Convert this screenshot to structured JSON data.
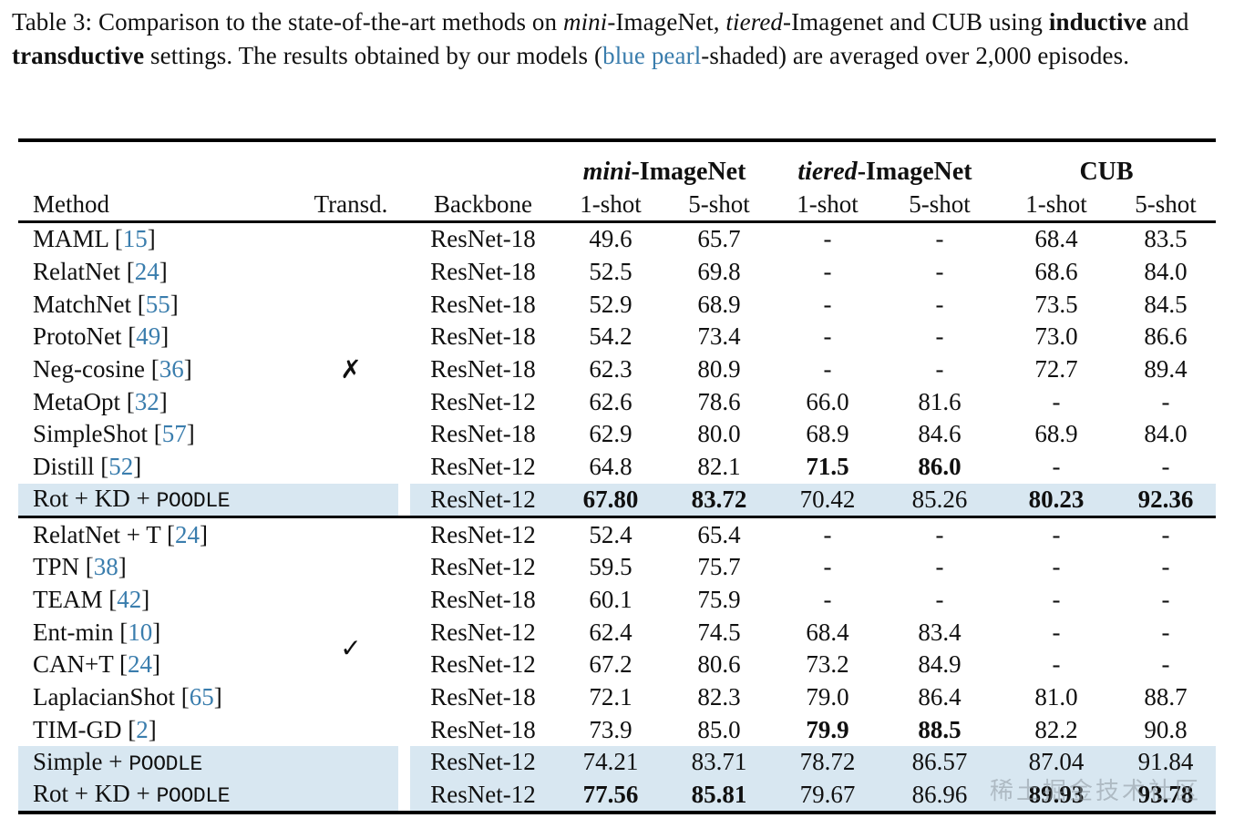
{
  "caption": {
    "parts": [
      {
        "t": "Table 3: Comparison to the state-of-the-art methods on ",
        "s": "n"
      },
      {
        "t": "mini",
        "s": "i"
      },
      {
        "t": "-ImageNet, ",
        "s": "n"
      },
      {
        "t": "tiered",
        "s": "i"
      },
      {
        "t": "-Imagenet and CUB using ",
        "s": "n"
      },
      {
        "t": "inductive",
        "s": "b"
      },
      {
        "t": " and ",
        "s": "n"
      },
      {
        "t": "transductive",
        "s": "b"
      },
      {
        "t": " settings. The results obtained by our models (",
        "s": "n"
      },
      {
        "t": "blue pearl",
        "s": "blue"
      },
      {
        "t": "-shaded) are averaged over 2,000 episodes.",
        "s": "n"
      }
    ]
  },
  "table": {
    "column_headers": [
      "Method",
      "Transd.",
      "Backbone",
      "1-shot",
      "5-shot",
      "1-shot",
      "5-shot",
      "1-shot",
      "5-shot"
    ],
    "groups": [
      {
        "italic": "mini",
        "rest": "-ImageNet"
      },
      {
        "italic": "tiered",
        "rest": "-ImageNet"
      },
      {
        "italic": "",
        "rest": "CUB"
      }
    ],
    "sections": [
      {
        "mark": "✗",
        "mark_row": 4,
        "mark_shift": false,
        "rows": [
          {
            "method": "MAML",
            "cite": "15",
            "mono": "",
            "backbone": "ResNet-18",
            "values": [
              "49.6",
              "65.7",
              "-",
              "-",
              "68.4",
              "83.5"
            ],
            "bold": [],
            "shaded": false
          },
          {
            "method": "RelatNet",
            "cite": "24",
            "mono": "",
            "backbone": "ResNet-18",
            "values": [
              "52.5",
              "69.8",
              "-",
              "-",
              "68.6",
              "84.0"
            ],
            "bold": [],
            "shaded": false
          },
          {
            "method": "MatchNet",
            "cite": "55",
            "mono": "",
            "backbone": "ResNet-18",
            "values": [
              "52.9",
              "68.9",
              "-",
              "-",
              "73.5",
              "84.5"
            ],
            "bold": [],
            "shaded": false
          },
          {
            "method": "ProtoNet",
            "cite": "49",
            "mono": "",
            "backbone": "ResNet-18",
            "values": [
              "54.2",
              "73.4",
              "-",
              "-",
              "73.0",
              "86.6"
            ],
            "bold": [],
            "shaded": false
          },
          {
            "method": "Neg-cosine",
            "cite": "36",
            "mono": "",
            "backbone": "ResNet-18",
            "values": [
              "62.3",
              "80.9",
              "-",
              "-",
              "72.7",
              "89.4"
            ],
            "bold": [],
            "shaded": false
          },
          {
            "method": "MetaOpt",
            "cite": "32",
            "mono": "",
            "backbone": "ResNet-12",
            "values": [
              "62.6",
              "78.6",
              "66.0",
              "81.6",
              "-",
              "-"
            ],
            "bold": [],
            "shaded": false
          },
          {
            "method": "SimpleShot",
            "cite": "57",
            "mono": "",
            "backbone": "ResNet-18",
            "values": [
              "62.9",
              "80.0",
              "68.9",
              "84.6",
              "68.9",
              "84.0"
            ],
            "bold": [],
            "shaded": false
          },
          {
            "method": "Distill",
            "cite": "52",
            "mono": "",
            "backbone": "ResNet-12",
            "values": [
              "64.8",
              "82.1",
              "71.5",
              "86.0",
              "-",
              "-"
            ],
            "bold": [
              2,
              3
            ],
            "shaded": false
          },
          {
            "method": "Rot + KD + ",
            "cite": "",
            "mono": "POODLE",
            "backbone": "ResNet-12",
            "values": [
              "67.80",
              "83.72",
              "70.42",
              "85.26",
              "80.23",
              "92.36"
            ],
            "bold": [
              0,
              1,
              4,
              5
            ],
            "shaded": true
          }
        ]
      },
      {
        "mark": "✓",
        "mark_row": 3,
        "mark_shift": true,
        "rows": [
          {
            "method": "RelatNet + T",
            "cite": "24",
            "mono": "",
            "backbone": "ResNet-12",
            "values": [
              "52.4",
              "65.4",
              "-",
              "-",
              "-",
              "-"
            ],
            "bold": [],
            "shaded": false
          },
          {
            "method": "TPN",
            "cite": "38",
            "mono": "",
            "backbone": "ResNet-12",
            "values": [
              "59.5",
              "75.7",
              "-",
              "-",
              "-",
              "-"
            ],
            "bold": [],
            "shaded": false
          },
          {
            "method": "TEAM",
            "cite": "42",
            "mono": "",
            "backbone": "ResNet-18",
            "values": [
              "60.1",
              "75.9",
              "-",
              "-",
              "-",
              "-"
            ],
            "bold": [],
            "shaded": false
          },
          {
            "method": "Ent-min",
            "cite": "10",
            "mono": "",
            "backbone": "ResNet-12",
            "values": [
              "62.4",
              "74.5",
              "68.4",
              "83.4",
              "-",
              "-"
            ],
            "bold": [],
            "shaded": false
          },
          {
            "method": "CAN+T",
            "cite": "24",
            "mono": "",
            "backbone": "ResNet-12",
            "values": [
              "67.2",
              "80.6",
              "73.2",
              "84.9",
              "-",
              "-"
            ],
            "bold": [],
            "shaded": false
          },
          {
            "method": "LaplacianShot",
            "cite": "65",
            "mono": "",
            "backbone": "ResNet-18",
            "values": [
              "72.1",
              "82.3",
              "79.0",
              "86.4",
              "81.0",
              "88.7"
            ],
            "bold": [],
            "shaded": false
          },
          {
            "method": "TIM-GD",
            "cite": "2",
            "mono": "",
            "backbone": "ResNet-18",
            "values": [
              "73.9",
              "85.0",
              "79.9",
              "88.5",
              "82.2",
              "90.8"
            ],
            "bold": [
              2,
              3
            ],
            "shaded": false
          },
          {
            "method": "Simple + ",
            "cite": "",
            "mono": "POODLE",
            "backbone": "ResNet-12",
            "values": [
              "74.21",
              "83.71",
              "78.72",
              "86.57",
              "87.04",
              "91.84"
            ],
            "bold": [],
            "shaded": true
          },
          {
            "method": "Rot + KD + ",
            "cite": "",
            "mono": "POODLE",
            "backbone": "ResNet-12",
            "values": [
              "77.56",
              "85.81",
              "79.67",
              "86.96",
              "89.93",
              "93.78"
            ],
            "bold": [
              0,
              1,
              4,
              5
            ],
            "shaded": true
          }
        ]
      }
    ]
  },
  "colors": {
    "accent_blue": "#3a7dad",
    "row_shade": "#d8e7f1"
  },
  "watermark": {
    "text": "稀土掘金技术社区"
  }
}
